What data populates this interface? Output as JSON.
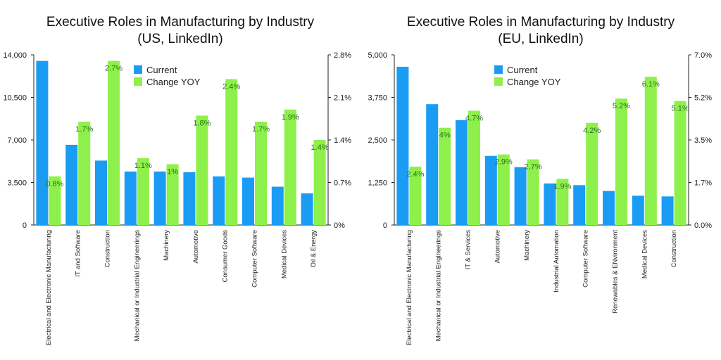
{
  "colors": {
    "current": "#1a9cf4",
    "change": "#8ef04a",
    "label": "#2b6e1a",
    "axis": "#222222",
    "grid": "#dddddd"
  },
  "chart_data": [
    {
      "type": "bar",
      "title_line1": "Executive Roles in Manufacturing by Industry",
      "title_line2": "(US, LinkedIn)",
      "categories": [
        "Electrical and Electronic Manufacturing",
        "IT and Software",
        "Construction",
        "Mechanical or Industrial Engineerings",
        "Machinery",
        "Automotive",
        "Consumer Goods",
        "Computer Software",
        "Medical Devices",
        "Oil & Energy"
      ],
      "series": [
        {
          "name": "Current",
          "axis": "left",
          "values": [
            13500,
            6600,
            5300,
            4400,
            4400,
            4350,
            4000,
            3900,
            3150,
            2600
          ]
        },
        {
          "name": "Change YOY",
          "axis": "right",
          "values": [
            0.8,
            1.7,
            2.7,
            1.1,
            1.0,
            1.8,
            2.4,
            1.7,
            1.9,
            1.4
          ],
          "labels": [
            "0.8%",
            "1.7%",
            "2.7%",
            "1.1%",
            "1%",
            "1.8%",
            "2.4%",
            "1.7%",
            "1.9%",
            "1.4%"
          ]
        }
      ],
      "left_axis": {
        "min": 0,
        "max": 14000,
        "ticks": [
          0,
          3500,
          7000,
          10500,
          14000
        ],
        "tick_labels": [
          "0",
          "3,500",
          "7,000",
          "10,500",
          "14,000"
        ]
      },
      "right_axis": {
        "min": 0,
        "max": 2.8,
        "ticks": [
          0,
          0.7,
          1.4,
          2.1,
          2.8
        ],
        "tick_labels": [
          "0%",
          "0.7%",
          "1.4%",
          "2.1%",
          "2.8%"
        ]
      },
      "legend": [
        "Current",
        "Change YOY"
      ],
      "legend_position": "top-center",
      "grid": false
    },
    {
      "type": "bar",
      "title_line1": "Executive Roles in Manufacturing by Industry",
      "title_line2": "(EU, LinkedIn)",
      "categories": [
        "Electrical and Electronic Manufacturing",
        "Mechanical or Industrial Engineerings",
        "IT & Services",
        "Automotive",
        "Machinery",
        "Industrial Automation",
        "Computer Software",
        "Renewables & ENvironment",
        "Medical Devices",
        "Construction"
      ],
      "series": [
        {
          "name": "Current",
          "axis": "left",
          "values": [
            4650,
            3550,
            3080,
            2030,
            1700,
            1220,
            1170,
            1000,
            860,
            840
          ]
        },
        {
          "name": "Change YOY",
          "axis": "right",
          "values": [
            2.4,
            4.0,
            4.7,
            2.9,
            2.7,
            1.9,
            4.2,
            5.2,
            6.1,
            5.1
          ],
          "labels": [
            "2.4%",
            "4%",
            "4.7%",
            "2.9%",
            "2.7%",
            "1.9%",
            "4.2%",
            "5.2%",
            "6.1%",
            "5.1%"
          ]
        }
      ],
      "left_axis": {
        "min": 0,
        "max": 5000,
        "ticks": [
          0,
          1250,
          2500,
          3750,
          5000
        ],
        "tick_labels": [
          "0",
          "1,250",
          "2,500",
          "3,750",
          "5,000"
        ]
      },
      "right_axis": {
        "min": 0,
        "max": 7.0,
        "ticks": [
          0,
          1.75,
          3.5,
          5.25,
          7.0
        ],
        "tick_labels": [
          "0.0%",
          "1.7%",
          "3.5%",
          "5.2%",
          "7.0%"
        ]
      },
      "legend": [
        "Current",
        "Change YOY"
      ],
      "legend_position": "top-center",
      "grid": false
    }
  ]
}
